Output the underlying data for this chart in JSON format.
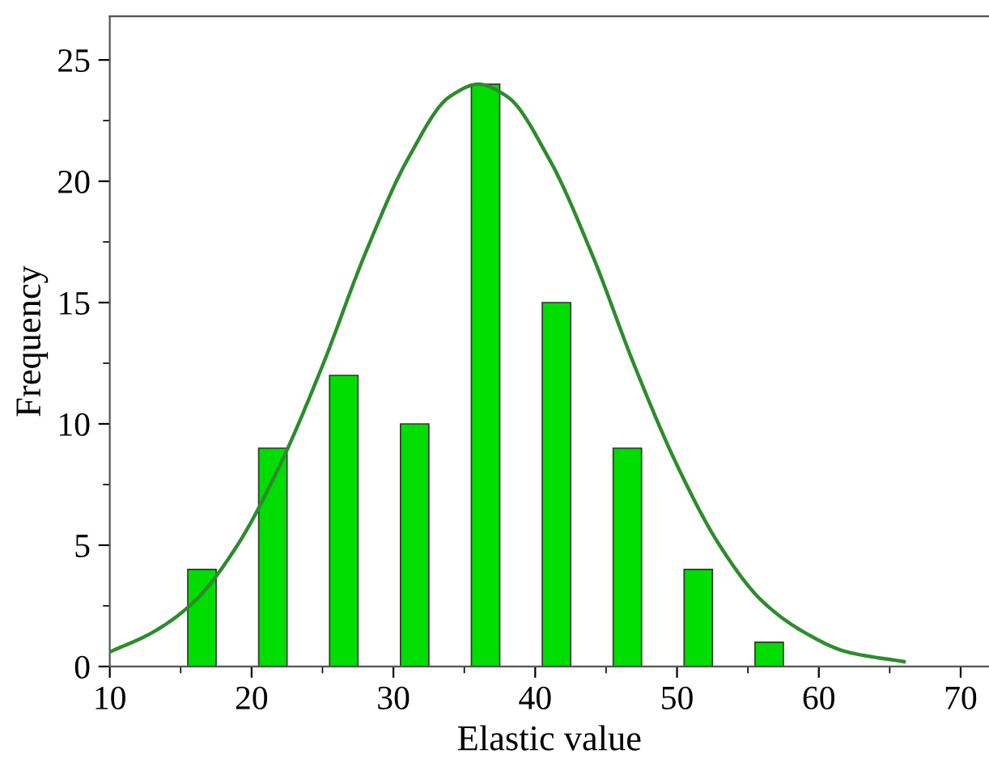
{
  "chart_data": {
    "type": "bar",
    "xlabel": "Elastic value",
    "ylabel": "Frequency",
    "xlim": [
      10,
      72
    ],
    "xticks": [
      10,
      20,
      30,
      40,
      50,
      60,
      70
    ],
    "ylim": [
      0,
      26.8
    ],
    "yticks": [
      0,
      5,
      10,
      15,
      20,
      25
    ],
    "grid": false,
    "legend": false,
    "series": [
      {
        "color": "#00dd00",
        "x": [
          16.5,
          21.5,
          26.5,
          31.5,
          36.5,
          41.5,
          46.5,
          51.5,
          56.5
        ],
        "values": [
          4,
          9,
          12,
          10,
          24,
          15,
          9,
          4,
          1
        ]
      },
      {
        "type": "line",
        "color": "#2e8b2e",
        "x": [
          10,
          13,
          16,
          19,
          22,
          25,
          28,
          31,
          34,
          36,
          38,
          41,
          44,
          47,
          50,
          53,
          56,
          59,
          62,
          66
        ],
        "values": [
          0.6,
          1.4,
          2.7,
          5.0,
          8.3,
          12.4,
          17.0,
          20.9,
          23.5,
          24,
          23.5,
          20.9,
          17.0,
          12.4,
          8.3,
          5.0,
          2.7,
          1.4,
          0.6,
          0.2
        ]
      }
    ]
  }
}
